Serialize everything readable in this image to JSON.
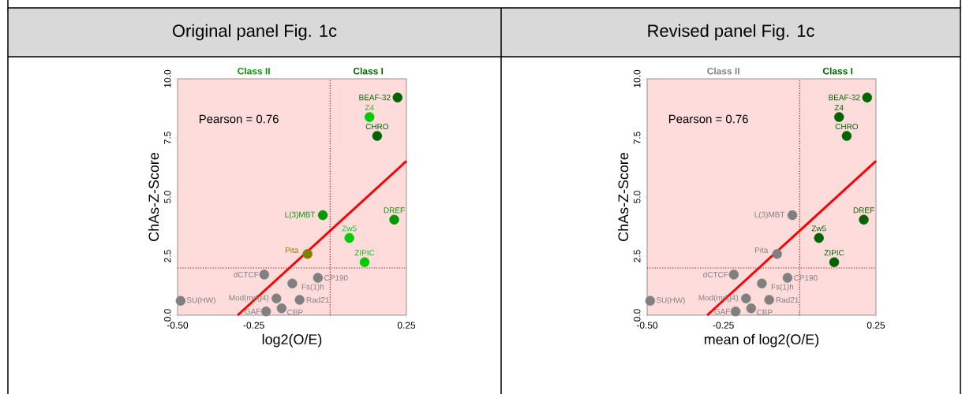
{
  "chart_data": [
    {
      "type": "scatter",
      "title": "Original panel Fig. 1c",
      "xlabel": "log2(O/E)",
      "ylabel": "ChAs-Z-Score",
      "marker": "circle",
      "xlim": [
        -0.5,
        0.25
      ],
      "ylim": [
        0,
        10
      ],
      "xticks": [
        {
          "value": -0.5,
          "label": "-0.50"
        },
        {
          "value": -0.25,
          "label": "-0.25"
        },
        {
          "value": 0,
          "label": null
        },
        {
          "value": 0.25,
          "label": "0.25"
        }
      ],
      "yticks": [
        {
          "value": 0,
          "label": "0.0"
        },
        {
          "value": 2.5,
          "label": "2.5"
        },
        {
          "value": 5,
          "label": "5.0"
        },
        {
          "value": 7.5,
          "label": "7.5"
        },
        {
          "value": 10,
          "label": "10.0"
        }
      ],
      "bands": [
        {
          "axis": "x",
          "from": -0.5,
          "to": 0.25,
          "color": "#ffdcdc"
        }
      ],
      "ref_lines": [
        {
          "axis": "x",
          "value": 0,
          "color": "#cc0000",
          "line_style": "dotted"
        },
        {
          "axis": "y",
          "value": 2,
          "color": "#cc0000",
          "line_style": "dotted"
        }
      ],
      "annotations": [
        "Pearson = 0.76",
        "Class II",
        "Class I"
      ],
      "series": [
        {
          "type": "line",
          "marker": "none",
          "color": "#ff0000",
          "x": [
            -0.303,
            0.25
          ],
          "values": [
            0,
            6.52
          ]
        },
        {
          "name": "SU(HW)",
          "color": "#808080",
          "x": [
            -0.49
          ],
          "values": [
            0.61
          ]
        },
        {
          "name": "dCTCF",
          "color": "#808080",
          "x": [
            -0.216
          ],
          "values": [
            1.72
          ]
        },
        {
          "name": "Fs(1)h",
          "color": "#808080",
          "x": [
            -0.124
          ],
          "values": [
            1.34
          ]
        },
        {
          "name": "CP190",
          "color": "#808080",
          "x": [
            -0.04
          ],
          "values": [
            1.58
          ]
        },
        {
          "name": "Mod(mdg4)",
          "color": "#808080",
          "x": [
            -0.176
          ],
          "values": [
            0.71
          ]
        },
        {
          "name": "GAF",
          "color": "#808080",
          "x": [
            -0.21
          ],
          "values": [
            0.16
          ]
        },
        {
          "name": "CBP",
          "color": "#808080",
          "x": [
            -0.159
          ],
          "values": [
            0.29
          ]
        },
        {
          "name": "Rad21",
          "color": "#808080",
          "x": [
            -0.1
          ],
          "values": [
            0.65
          ]
        },
        {
          "name": "Pita",
          "color": "#808000",
          "x": [
            -0.074
          ],
          "values": [
            2.59
          ]
        },
        {
          "name": "L(3)MBT",
          "color": "#009900",
          "x": [
            -0.024
          ],
          "values": [
            4.23
          ]
        },
        {
          "name": "Zw5",
          "color": "#00cc00",
          "x": [
            0.063
          ],
          "values": [
            3.27
          ]
        },
        {
          "name": "ZIPIC",
          "color": "#00cc00",
          "x": [
            0.113
          ],
          "values": [
            2.24
          ]
        },
        {
          "name": "DREF",
          "color": "#009900",
          "x": [
            0.21
          ],
          "values": [
            4.04
          ]
        },
        {
          "name": "CHRO",
          "color": "#006400",
          "x": [
            0.154
          ],
          "values": [
            7.58
          ]
        },
        {
          "name": "Z4",
          "color": "#00cc00",
          "x": [
            0.129
          ],
          "values": [
            8.38
          ]
        },
        {
          "name": "BEAF-32",
          "color": "#006400",
          "x": [
            0.221
          ],
          "values": [
            9.21
          ]
        }
      ]
    },
    {
      "type": "scatter",
      "title": "Revised panel Fig. 1c",
      "xlabel": "mean of log2(O/E)",
      "ylabel": "ChAs-Z-Score",
      "marker": "circle",
      "xlim": [
        -0.5,
        0.25
      ],
      "ylim": [
        0,
        10
      ],
      "xticks": [
        {
          "value": -0.5,
          "label": "-0.50"
        },
        {
          "value": -0.25,
          "label": "-0.25"
        },
        {
          "value": 0,
          "label": null
        },
        {
          "value": 0.25,
          "label": "0.25"
        }
      ],
      "yticks": [
        {
          "value": 0,
          "label": "0.0"
        },
        {
          "value": 2.5,
          "label": "2.5"
        },
        {
          "value": 5,
          "label": "5.0"
        },
        {
          "value": 7.5,
          "label": "7.5"
        },
        {
          "value": 10,
          "label": "10.0"
        }
      ],
      "bands": [
        {
          "axis": "x",
          "from": -0.5,
          "to": 0.25,
          "color": "#ffdcdc"
        }
      ],
      "ref_lines": [
        {
          "axis": "x",
          "value": 0,
          "color": "#cc0000",
          "line_style": "dotted"
        },
        {
          "axis": "y",
          "value": 2,
          "color": "#cc0000",
          "line_style": "dotted"
        }
      ],
      "annotations": [
        "Pearson = 0.76",
        "Class II",
        "Class I"
      ],
      "series": [
        {
          "type": "line",
          "marker": "none",
          "color": "#ff0000",
          "x": [
            -0.303,
            0.25
          ],
          "values": [
            0,
            6.52
          ]
        },
        {
          "name": "SU(HW)",
          "color": "#808080",
          "x": [
            -0.49
          ],
          "values": [
            0.61
          ]
        },
        {
          "name": "dCTCF",
          "color": "#808080",
          "x": [
            -0.216
          ],
          "values": [
            1.72
          ]
        },
        {
          "name": "Fs(1)h",
          "color": "#808080",
          "x": [
            -0.124
          ],
          "values": [
            1.34
          ]
        },
        {
          "name": "CP190",
          "color": "#808080",
          "x": [
            -0.04
          ],
          "values": [
            1.58
          ]
        },
        {
          "name": "Mod(mdg4)",
          "color": "#808080",
          "x": [
            -0.176
          ],
          "values": [
            0.71
          ]
        },
        {
          "name": "GAF",
          "color": "#808080",
          "x": [
            -0.21
          ],
          "values": [
            0.16
          ]
        },
        {
          "name": "CBP",
          "color": "#808080",
          "x": [
            -0.159
          ],
          "values": [
            0.29
          ]
        },
        {
          "name": "Rad21",
          "color": "#808080",
          "x": [
            -0.1
          ],
          "values": [
            0.65
          ]
        },
        {
          "name": "Pita",
          "color": "#808080",
          "x": [
            -0.074
          ],
          "values": [
            2.59
          ]
        },
        {
          "name": "L(3)MBT",
          "color": "#808080",
          "x": [
            -0.024
          ],
          "values": [
            4.23
          ]
        },
        {
          "name": "Zw5",
          "color": "#006400",
          "x": [
            0.063
          ],
          "values": [
            3.27
          ]
        },
        {
          "name": "ZIPIC",
          "color": "#006400",
          "x": [
            0.113
          ],
          "values": [
            2.24
          ]
        },
        {
          "name": "DREF",
          "color": "#006400",
          "x": [
            0.21
          ],
          "values": [
            4.04
          ]
        },
        {
          "name": "CHRO",
          "color": "#006400",
          "x": [
            0.154
          ],
          "values": [
            7.58
          ]
        },
        {
          "name": "Z4",
          "color": "#006400",
          "x": [
            0.129
          ],
          "values": [
            8.38
          ]
        },
        {
          "name": "BEAF-32",
          "color": "#006400",
          "x": [
            0.221
          ],
          "values": [
            9.21
          ]
        }
      ]
    }
  ]
}
